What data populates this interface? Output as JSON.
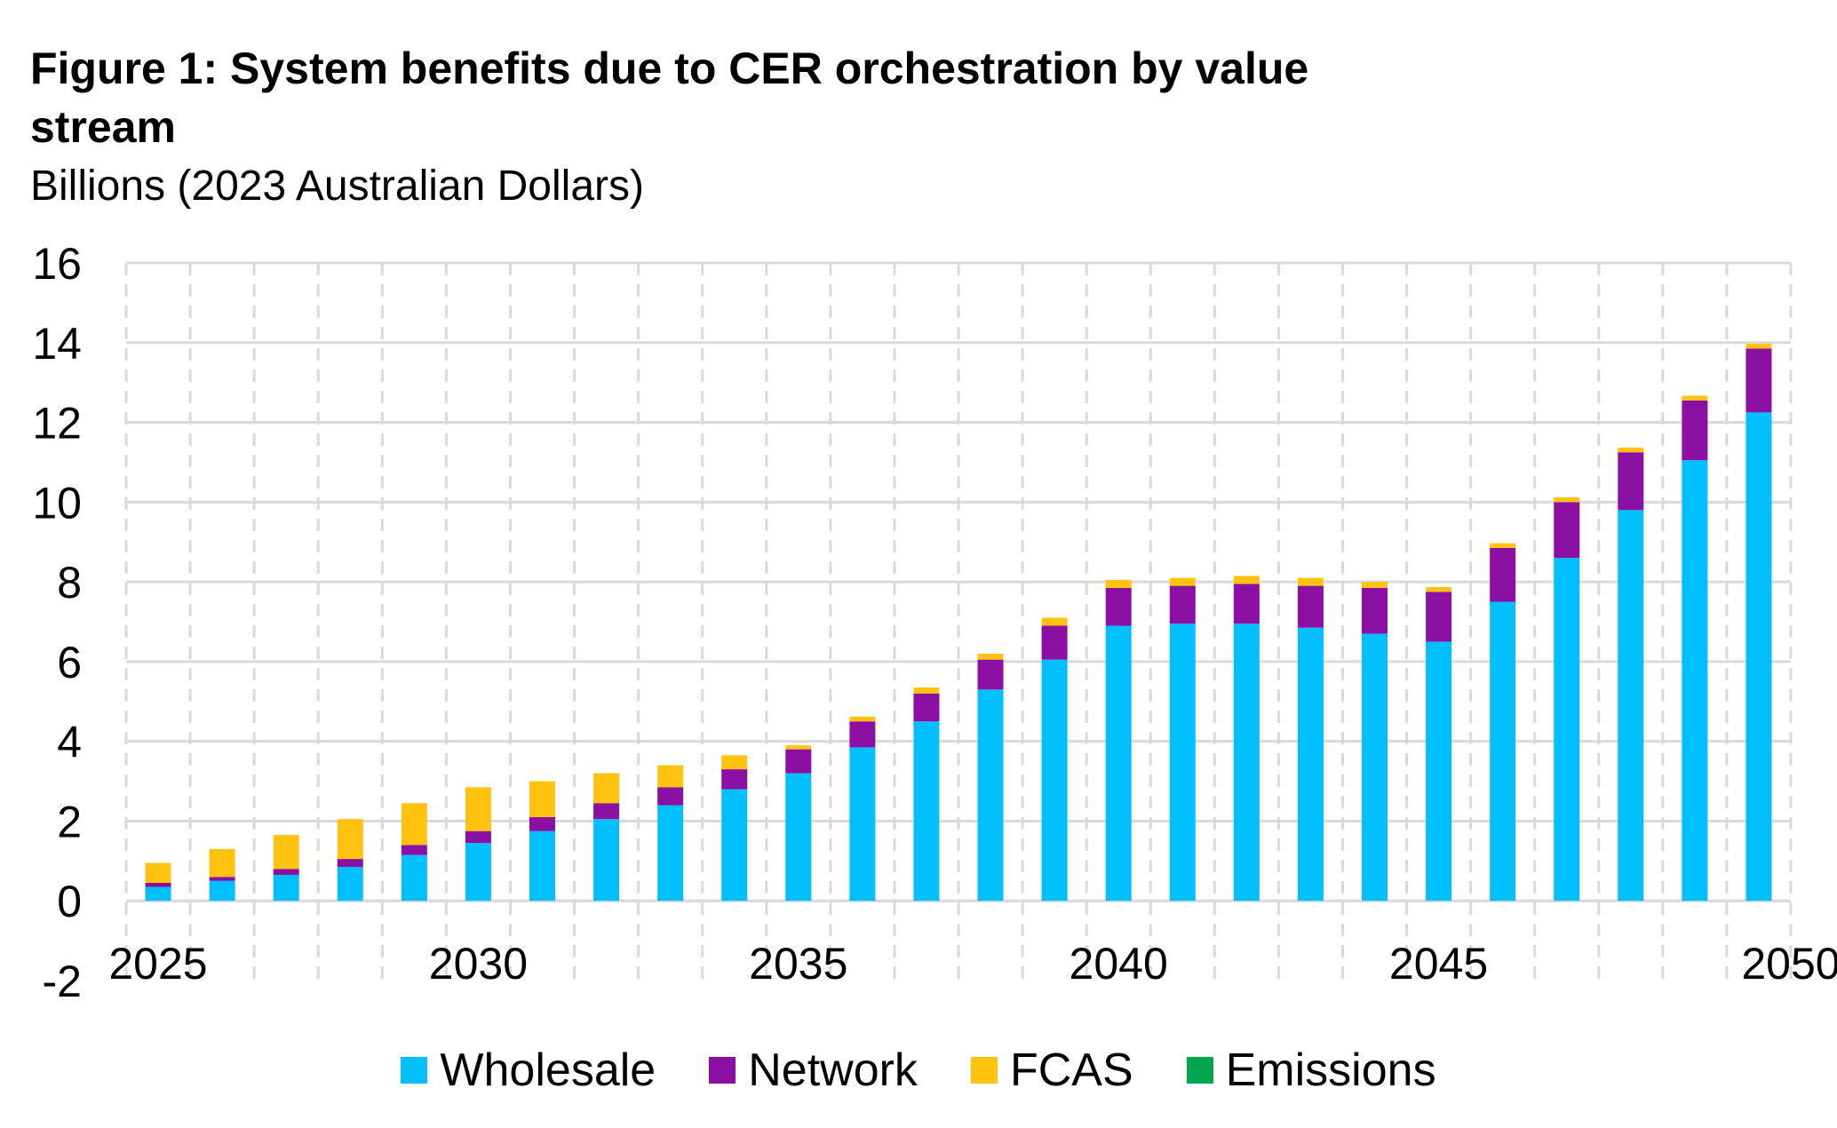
{
  "chart_data": {
    "type": "bar",
    "stacked": true,
    "title": "Figure 1: System benefits due to CER orchestration by value stream",
    "subtitle": "Billions (2023 Australian Dollars)",
    "x": [
      2025,
      2026,
      2027,
      2028,
      2029,
      2030,
      2031,
      2032,
      2033,
      2034,
      2035,
      2036,
      2037,
      2038,
      2039,
      2040,
      2041,
      2042,
      2043,
      2044,
      2045,
      2046,
      2047,
      2048,
      2049,
      2050
    ],
    "x_tick_labels": [
      "2025",
      "2030",
      "2035",
      "2040",
      "2045",
      "2050"
    ],
    "ylim": [
      -2,
      16
    ],
    "y_ticks": [
      -2,
      0,
      2,
      4,
      6,
      8,
      10,
      12,
      14,
      16
    ],
    "grid": true,
    "legend_position": "bottom",
    "series": [
      {
        "name": "Wholesale",
        "color": "#00BFFF",
        "values": [
          0.35,
          0.5,
          0.65,
          0.85,
          1.15,
          1.45,
          1.75,
          2.05,
          2.4,
          2.8,
          3.2,
          3.85,
          4.5,
          5.3,
          6.05,
          6.9,
          6.95,
          6.95,
          6.85,
          6.7,
          6.5,
          7.5,
          8.6,
          9.8,
          11.05,
          12.25
        ]
      },
      {
        "name": "Network",
        "color": "#8B0FA3",
        "values": [
          0.1,
          0.1,
          0.15,
          0.2,
          0.25,
          0.3,
          0.35,
          0.4,
          0.45,
          0.5,
          0.6,
          0.65,
          0.7,
          0.75,
          0.85,
          0.95,
          0.95,
          1.0,
          1.05,
          1.15,
          1.25,
          1.35,
          1.4,
          1.45,
          1.5,
          1.6
        ]
      },
      {
        "name": "FCAS",
        "color": "#FFC20E",
        "values": [
          0.5,
          0.7,
          0.85,
          1.0,
          1.05,
          1.1,
          0.9,
          0.75,
          0.55,
          0.35,
          0.1,
          0.12,
          0.15,
          0.15,
          0.2,
          0.2,
          0.2,
          0.2,
          0.2,
          0.15,
          0.12,
          0.12,
          0.12,
          0.12,
          0.12,
          0.12
        ]
      },
      {
        "name": "Emissions",
        "color": "#00A650",
        "values": [
          0,
          0,
          0,
          0,
          0,
          0,
          0,
          0,
          0,
          0,
          0,
          0,
          0,
          0,
          0,
          0,
          0,
          0,
          0,
          0,
          0,
          0,
          0,
          0,
          0,
          0
        ]
      }
    ]
  }
}
